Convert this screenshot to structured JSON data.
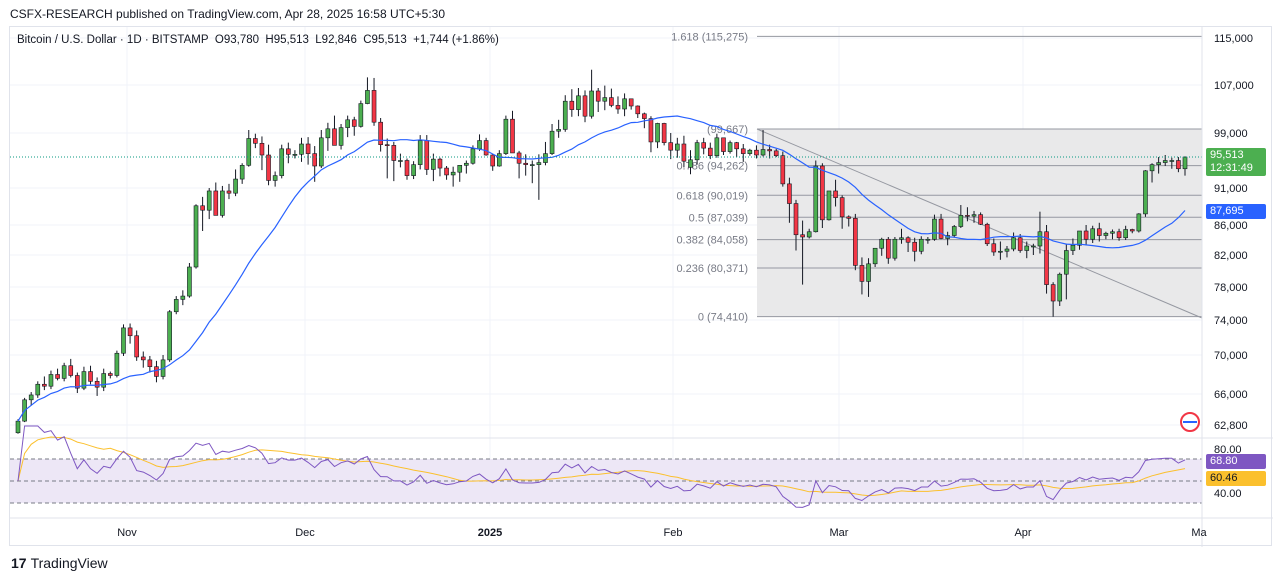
{
  "header": {
    "publisher": "CSFX-RESEARCH published on TradingView.com, Apr 28, 2025 16:58 UTC+5:30"
  },
  "legend": {
    "symbol": "Bitcoin / U.S. Dollar · 1D · BITSTAMP",
    "open": "O93,780",
    "high": "H95,513",
    "low": "L92,846",
    "close": "C95,513",
    "change": "+1,744 (+1.86%)"
  },
  "footer": {
    "brand": "TradingView"
  },
  "colors": {
    "up": "#089981",
    "down": "#f23645",
    "up_fill": "#4caf50",
    "ma": "#2962ff",
    "rsi_line": "#7e57c2",
    "rsi_ma": "#fbc02d",
    "fib_zone": "#e9e9ea"
  },
  "chart_data": {
    "type": "candlestick",
    "y_axis": {
      "ticks": [
        "115,000",
        "107,000",
        "99,000",
        "91,000",
        "86,000",
        "82,000",
        "78,000",
        "74,000",
        "70,000",
        "66,000",
        "62,800"
      ],
      "tick_values": [
        115000,
        107000,
        99000,
        91000,
        86000,
        82000,
        78000,
        74000,
        70000,
        66000,
        62800
      ]
    },
    "x_axis": {
      "ticks": [
        "Nov",
        "Dec",
        "2025",
        "Feb",
        "Mar",
        "Apr",
        "Ma"
      ],
      "bold": [
        false,
        false,
        true,
        false,
        false,
        false,
        false
      ]
    },
    "fibonacci": [
      {
        "label": "1.618 (115,275)",
        "value": 115275
      },
      {
        "label": "(99,667)",
        "value": 99667
      },
      {
        "label": "0.786 (94,262)",
        "value": 94262
      },
      {
        "label": "0.618 (90,019)",
        "value": 90019
      },
      {
        "label": "0.5 (87,039)",
        "value": 87039
      },
      {
        "label": "0.382 (84,058)",
        "value": 84058
      },
      {
        "label": "0.236 (80,371)",
        "value": 80371
      },
      {
        "label": "0 (74,410)",
        "value": 74410
      }
    ],
    "current_price": {
      "value": "95,513",
      "countdown": "12:31:49"
    },
    "ma_label": "87,695",
    "rsi": {
      "levels": [
        "80.00",
        "40.00"
      ],
      "value": "68.80",
      "ma_value": "60.46"
    },
    "candles_ohlc": [
      [
        62000,
        63400,
        61900,
        63200
      ],
      [
        63200,
        65600,
        63100,
        65400
      ],
      [
        65400,
        66200,
        64800,
        65900
      ],
      [
        65900,
        67300,
        65600,
        67000
      ],
      [
        67000,
        67800,
        66400,
        66800
      ],
      [
        66800,
        68400,
        66500,
        68000
      ],
      [
        68000,
        68600,
        67400,
        67600
      ],
      [
        67600,
        69200,
        67300,
        68900
      ],
      [
        68900,
        69600,
        67700,
        67900
      ],
      [
        67900,
        68200,
        66100,
        66600
      ],
      [
        66600,
        68800,
        66400,
        68300
      ],
      [
        68300,
        68900,
        67000,
        67300
      ],
      [
        67300,
        67700,
        65800,
        66700
      ],
      [
        66700,
        68600,
        66300,
        68100
      ],
      [
        68100,
        68300,
        67600,
        67900
      ],
      [
        67900,
        70500,
        67700,
        70200
      ],
      [
        70200,
        73500,
        69900,
        73100
      ],
      [
        73100,
        73600,
        71300,
        72200
      ],
      [
        72200,
        72800,
        69400,
        69800
      ],
      [
        69800,
        70400,
        68700,
        69500
      ],
      [
        69500,
        69900,
        68200,
        68800
      ],
      [
        68800,
        69400,
        67200,
        67800
      ],
      [
        67800,
        70000,
        67500,
        69500
      ],
      [
        69500,
        75200,
        69300,
        75000
      ],
      [
        75000,
        76900,
        74700,
        76500
      ],
      [
        76500,
        77600,
        75800,
        76900
      ],
      [
        76900,
        81000,
        76700,
        80500
      ],
      [
        80500,
        88800,
        80300,
        88600
      ],
      [
        88600,
        89800,
        85200,
        88000
      ],
      [
        88000,
        91000,
        86800,
        90600
      ],
      [
        90600,
        91800,
        87400,
        87300
      ],
      [
        87300,
        91300,
        87000,
        90600
      ],
      [
        90600,
        91600,
        89500,
        90300
      ],
      [
        90300,
        93700,
        89900,
        92300
      ],
      [
        92300,
        94600,
        91600,
        94300
      ],
      [
        94300,
        99500,
        94100,
        98200
      ],
      [
        98200,
        98900,
        96800,
        97500
      ],
      [
        97500,
        98500,
        93600,
        95800
      ],
      [
        95800,
        97300,
        91400,
        92100
      ],
      [
        92100,
        93400,
        91200,
        92800
      ],
      [
        92800,
        97300,
        92400,
        96700
      ],
      [
        96700,
        97600,
        94600,
        95900
      ],
      [
        95900,
        96500,
        95300,
        95900
      ],
      [
        95900,
        98300,
        94800,
        97400
      ],
      [
        97400,
        98400,
        94400,
        96000
      ],
      [
        96000,
        97100,
        91900,
        94200
      ],
      [
        94200,
        99500,
        93900,
        98300
      ],
      [
        98300,
        100700,
        96400,
        99700
      ],
      [
        99700,
        101900,
        97700,
        97200
      ],
      [
        97200,
        100500,
        96600,
        99900
      ],
      [
        99900,
        101900,
        98400,
        101200
      ],
      [
        101200,
        101700,
        98600,
        100100
      ],
      [
        100100,
        104400,
        99900,
        103900
      ],
      [
        103900,
        108300,
        103800,
        106100
      ],
      [
        106100,
        108200,
        100200,
        100800
      ],
      [
        100800,
        101500,
        96300,
        97300
      ],
      [
        97300,
        98200,
        92400,
        97200
      ],
      [
        97200,
        97700,
        92000,
        95000
      ],
      [
        95000,
        96000,
        94000,
        95000
      ],
      [
        95000,
        95300,
        92200,
        92800
      ],
      [
        92800,
        94900,
        92300,
        94400
      ],
      [
        94400,
        98700,
        93700,
        97900
      ],
      [
        97900,
        98700,
        92900,
        93700
      ],
      [
        93700,
        96000,
        92000,
        95200
      ],
      [
        95200,
        95400,
        92700,
        93900
      ],
      [
        93900,
        94200,
        92200,
        92900
      ],
      [
        92900,
        94100,
        91200,
        93300
      ],
      [
        93300,
        94100,
        91900,
        94300
      ],
      [
        94300,
        95000,
        93100,
        94600
      ],
      [
        94600,
        97200,
        94400,
        96700
      ],
      [
        96700,
        98800,
        96400,
        97900
      ],
      [
        97900,
        98300,
        95700,
        95800
      ],
      [
        95800,
        95900,
        93500,
        94200
      ],
      [
        94200,
        96500,
        94100,
        96000
      ],
      [
        96000,
        101900,
        95800,
        101300
      ],
      [
        101300,
        102700,
        96200,
        96100
      ],
      [
        96100,
        96400,
        92400,
        94600
      ],
      [
        94600,
        95900,
        92800,
        94400
      ],
      [
        94400,
        95000,
        91700,
        94400
      ],
      [
        94400,
        95900,
        89400,
        94700
      ],
      [
        94700,
        97700,
        94300,
        96000
      ],
      [
        96000,
        100500,
        95800,
        99300
      ],
      [
        99300,
        101200,
        98300,
        99600
      ],
      [
        99600,
        105300,
        99200,
        104300
      ],
      [
        104300,
        106300,
        101700,
        102900
      ],
      [
        102900,
        106500,
        101800,
        105200
      ],
      [
        105200,
        106100,
        100800,
        101800
      ],
      [
        101800,
        109600,
        101400,
        106000
      ],
      [
        106000,
        106500,
        102500,
        104300
      ],
      [
        104300,
        106900,
        102800,
        104900
      ],
      [
        104900,
        106400,
        103300,
        103600
      ],
      [
        103600,
        105100,
        102200,
        103000
      ],
      [
        103000,
        105600,
        101800,
        104700
      ],
      [
        104700,
        104600,
        102900,
        103500
      ],
      [
        103500,
        103600,
        101500,
        102200
      ],
      [
        102200,
        102400,
        99800,
        101400
      ],
      [
        101400,
        101800,
        96200,
        97700
      ],
      [
        97700,
        100700,
        96800,
        100600
      ],
      [
        100600,
        100700,
        97200,
        97600
      ],
      [
        97600,
        99000,
        95200,
        96500
      ],
      [
        96500,
        98300,
        95400,
        97400
      ],
      [
        97400,
        98600,
        94000,
        94900
      ],
      [
        94000,
        96500,
        93000,
        95100
      ],
      [
        95100,
        98000,
        94400,
        97600
      ],
      [
        97600,
        98300,
        95900,
        96800
      ],
      [
        96800,
        97600,
        95200,
        95700
      ],
      [
        95700,
        98900,
        95400,
        98300
      ],
      [
        98300,
        98300,
        95800,
        96300
      ],
      [
        96300,
        97900,
        96000,
        97600
      ],
      [
        97600,
        97700,
        95500,
        96700
      ],
      [
        96700,
        97400,
        94800,
        96000
      ],
      [
        96000,
        96700,
        95700,
        96500
      ],
      [
        96500,
        97200,
        95300,
        95800
      ],
      [
        95800,
        99500,
        95600,
        96600
      ],
      [
        96600,
        97300,
        95300,
        96400
      ],
      [
        96400,
        96700,
        95500,
        95700
      ],
      [
        95700,
        96300,
        91200,
        91600
      ],
      [
        91600,
        92500,
        86300,
        88900
      ],
      [
        88900,
        89400,
        82600,
        84700
      ],
      [
        84700,
        86600,
        78300,
        84400
      ],
      [
        84400,
        85500,
        84200,
        85100
      ],
      [
        85100,
        95000,
        85000,
        94200
      ],
      [
        94200,
        94600,
        85600,
        86700
      ],
      [
        86700,
        90500,
        86600,
        90600
      ],
      [
        90600,
        92200,
        88500,
        89700
      ],
      [
        89700,
        90000,
        85500,
        87100
      ],
      [
        87100,
        87300,
        85800,
        86900
      ],
      [
        86900,
        87500,
        80100,
        80700
      ],
      [
        80700,
        81700,
        77100,
        78700
      ],
      [
        78700,
        81600,
        76800,
        80900
      ],
      [
        80900,
        82800,
        80500,
        82900
      ],
      [
        82900,
        84300,
        81900,
        84100
      ],
      [
        84100,
        84400,
        80900,
        81600
      ],
      [
        81600,
        84400,
        81300,
        84100
      ],
      [
        84100,
        85500,
        83500,
        84300
      ],
      [
        84300,
        84500,
        82400,
        83700
      ],
      [
        83700,
        84300,
        81200,
        82500
      ],
      [
        82500,
        84500,
        82100,
        84100
      ],
      [
        84100,
        84400,
        83500,
        84100
      ],
      [
        84100,
        87400,
        83900,
        86800
      ],
      [
        86800,
        87500,
        84100,
        84200
      ],
      [
        84200,
        85100,
        83300,
        84600
      ],
      [
        84600,
        86000,
        84300,
        85800
      ],
      [
        85800,
        88700,
        85600,
        87300
      ],
      [
        87300,
        88400,
        86500,
        87200
      ],
      [
        87200,
        87900,
        86300,
        87400
      ],
      [
        87400,
        87700,
        86000,
        86100
      ],
      [
        86100,
        86300,
        83200,
        83500
      ],
      [
        83500,
        84200,
        81900,
        82400
      ],
      [
        82400,
        83800,
        81400,
        82500
      ],
      [
        82500,
        83200,
        81700,
        82800
      ],
      [
        82800,
        85000,
        82500,
        84300
      ],
      [
        84300,
        84800,
        82300,
        82600
      ],
      [
        82600,
        83800,
        81600,
        83200
      ],
      [
        83200,
        83500,
        82000,
        83200
      ],
      [
        83200,
        87800,
        82200,
        85100
      ],
      [
        85100,
        86000,
        77200,
        78300
      ],
      [
        78300,
        78600,
        74400,
        76300
      ],
      [
        76300,
        79800,
        75700,
        79600
      ],
      [
        79600,
        83500,
        76500,
        82600
      ],
      [
        82600,
        84200,
        82000,
        83300
      ],
      [
        83300,
        85200,
        82700,
        85200
      ],
      [
        85200,
        86000,
        83300,
        84100
      ],
      [
        84100,
        85900,
        83600,
        85500
      ],
      [
        85500,
        86300,
        83800,
        84600
      ],
      [
        84600,
        85100,
        84100,
        84900
      ],
      [
        84900,
        85400,
        84100,
        85100
      ],
      [
        85100,
        85500,
        83900,
        84300
      ],
      [
        84300,
        85900,
        84000,
        85400
      ],
      [
        85400,
        85500,
        84900,
        85200
      ],
      [
        85200,
        87600,
        85000,
        87500
      ],
      [
        87500,
        93600,
        87100,
        93500
      ],
      [
        93500,
        94600,
        91800,
        94400
      ],
      [
        94400,
        95500,
        93100,
        94700
      ],
      [
        94700,
        95800,
        94200,
        95000
      ],
      [
        95000,
        95400,
        93800,
        95000
      ],
      [
        95000,
        95500,
        93300,
        93800
      ],
      [
        93800,
        95600,
        92800,
        95500
      ]
    ]
  }
}
